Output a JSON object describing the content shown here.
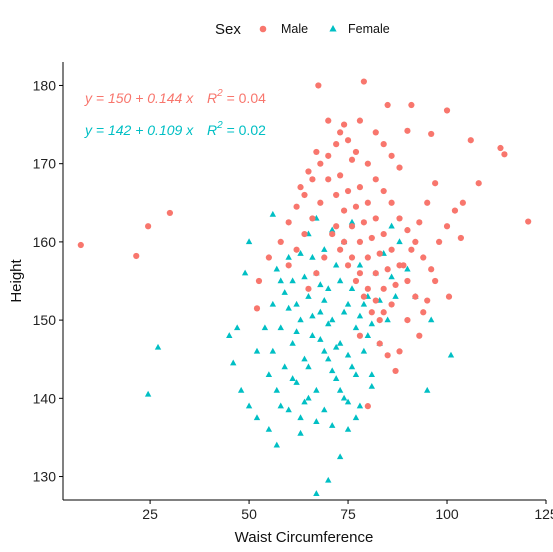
{
  "chart_data": {
    "type": "scatter",
    "xlabel": "Waist Circumference",
    "ylabel": "Height",
    "xlim": [
      3,
      125
    ],
    "ylim": [
      127,
      183
    ],
    "x_ticks": [
      "25",
      "50",
      "75",
      "100",
      "125"
    ],
    "y_ticks": [
      "130",
      "140",
      "150",
      "160",
      "170",
      "180"
    ],
    "grid": false,
    "legend": {
      "title": "Sex",
      "position": "top",
      "entries": [
        {
          "label": "Male",
          "marker": "circle",
          "color": "#F8766D"
        },
        {
          "label": "Female",
          "marker": "triangle",
          "color": "#00BFC4"
        }
      ]
    },
    "annotations": [
      {
        "series": "Male",
        "equation": "y = 150 + 0.144 x",
        "r2_symbol": "R",
        "r2_sup": "2",
        "r2_value": " = 0.04",
        "color": "#F8766D"
      },
      {
        "series": "Female",
        "equation": "y = 142 + 0.109 x",
        "r2_symbol": "R",
        "r2_sup": "2",
        "r2_value": " = 0.02",
        "color": "#00BFC4"
      }
    ],
    "series": [
      {
        "name": "Male",
        "marker": "circle",
        "color": "#F8766D",
        "points": [
          [
            7.5,
            159.6
          ],
          [
            21.5,
            158.2
          ],
          [
            24.5,
            162
          ],
          [
            30,
            163.7
          ],
          [
            113.5,
            172
          ],
          [
            114.5,
            171.2
          ],
          [
            120.5,
            162.6
          ],
          [
            67.5,
            180
          ],
          [
            79,
            180.5
          ],
          [
            91,
            177.5
          ],
          [
            100,
            176.8
          ],
          [
            85,
            177.5
          ],
          [
            74,
            175
          ],
          [
            78,
            175.5
          ],
          [
            90,
            174.2
          ],
          [
            96,
            173.8
          ],
          [
            106,
            173
          ],
          [
            108,
            167.5
          ],
          [
            104,
            165
          ],
          [
            103.5,
            160.5
          ],
          [
            100.5,
            153
          ],
          [
            97,
            155
          ],
          [
            95,
            152.5
          ],
          [
            90,
            150
          ],
          [
            88,
            146
          ],
          [
            93,
            148
          ],
          [
            80,
            139
          ],
          [
            87,
            143.5
          ],
          [
            85,
            145.5
          ],
          [
            83,
            147
          ],
          [
            78,
            148
          ],
          [
            52,
            151.5
          ],
          [
            52.5,
            155
          ],
          [
            55,
            158
          ],
          [
            58,
            160
          ],
          [
            60,
            162.5
          ],
          [
            62,
            164.5
          ],
          [
            63,
            167
          ],
          [
            65,
            169
          ],
          [
            67,
            171.5
          ],
          [
            70,
            171
          ],
          [
            72,
            172.5
          ],
          [
            73,
            174
          ],
          [
            75,
            173
          ],
          [
            77,
            171.5
          ],
          [
            80,
            170
          ],
          [
            82,
            168
          ],
          [
            84,
            166.5
          ],
          [
            86,
            165
          ],
          [
            88,
            163
          ],
          [
            90,
            161.5
          ],
          [
            92,
            160
          ],
          [
            94,
            158
          ],
          [
            96,
            156.5
          ],
          [
            98,
            160
          ],
          [
            100,
            162
          ],
          [
            102,
            164
          ],
          [
            70,
            168
          ],
          [
            72,
            166
          ],
          [
            74,
            164
          ],
          [
            76,
            162
          ],
          [
            78,
            160
          ],
          [
            80,
            158
          ],
          [
            82,
            156
          ],
          [
            84,
            154
          ],
          [
            86,
            152
          ],
          [
            68,
            165
          ],
          [
            66,
            163
          ],
          [
            64,
            161
          ],
          [
            62,
            159
          ],
          [
            60,
            157
          ],
          [
            75,
            166.5
          ],
          [
            77,
            164.5
          ],
          [
            79,
            162.5
          ],
          [
            81,
            160.5
          ],
          [
            83,
            158.5
          ],
          [
            85,
            156.5
          ],
          [
            87,
            154.5
          ],
          [
            89,
            157
          ],
          [
            91,
            159
          ],
          [
            93,
            162.5
          ],
          [
            95,
            165
          ],
          [
            97,
            167.5
          ],
          [
            88,
            169.5
          ],
          [
            86,
            171
          ],
          [
            84,
            172.5
          ],
          [
            82,
            174
          ],
          [
            70,
            175.5
          ],
          [
            68,
            170
          ],
          [
            66,
            168
          ],
          [
            64,
            166
          ],
          [
            71,
            161
          ],
          [
            73,
            159
          ],
          [
            75,
            157
          ],
          [
            77,
            155
          ],
          [
            79,
            153
          ],
          [
            81,
            151
          ],
          [
            83,
            150
          ],
          [
            69,
            158
          ],
          [
            67,
            156
          ],
          [
            65,
            154
          ],
          [
            73,
            168.5
          ],
          [
            76,
            170.5
          ],
          [
            78,
            167
          ],
          [
            80,
            165
          ],
          [
            82,
            163
          ],
          [
            84,
            161
          ],
          [
            86,
            159
          ],
          [
            88,
            157
          ],
          [
            90,
            155
          ],
          [
            92,
            153
          ],
          [
            94,
            151
          ],
          [
            72,
            162
          ],
          [
            74,
            160
          ],
          [
            76,
            158
          ],
          [
            78,
            156
          ],
          [
            80,
            154
          ],
          [
            82,
            152.5
          ],
          [
            84,
            151
          ]
        ]
      },
      {
        "name": "Female",
        "marker": "triangle",
        "color": "#00BFC4",
        "points": [
          [
            24.5,
            140.5
          ],
          [
            27,
            146.5
          ],
          [
            67,
            127.8
          ],
          [
            70,
            129.5
          ],
          [
            57,
            134
          ],
          [
            63,
            135.5
          ],
          [
            73,
            132.5
          ],
          [
            75,
            136
          ],
          [
            78,
            139
          ],
          [
            81,
            141.5
          ],
          [
            95,
            141
          ],
          [
            101,
            145.5
          ],
          [
            96,
            150
          ],
          [
            92,
            153
          ],
          [
            90,
            156.5
          ],
          [
            88,
            160
          ],
          [
            86,
            162
          ],
          [
            56,
            163.5
          ],
          [
            50,
            160
          ],
          [
            49,
            156
          ],
          [
            47,
            149
          ],
          [
            45,
            148
          ],
          [
            46,
            144.5
          ],
          [
            48,
            141
          ],
          [
            50,
            139
          ],
          [
            52,
            137.5
          ],
          [
            55,
            136
          ],
          [
            60,
            138.5
          ],
          [
            62,
            142
          ],
          [
            64,
            145
          ],
          [
            66,
            148
          ],
          [
            68,
            151
          ],
          [
            70,
            154
          ],
          [
            72,
            157
          ],
          [
            74,
            160
          ],
          [
            76,
            162.5
          ],
          [
            60,
            158
          ],
          [
            58,
            155
          ],
          [
            56,
            152
          ],
          [
            54,
            149
          ],
          [
            52,
            146
          ],
          [
            55,
            143
          ],
          [
            57,
            141
          ],
          [
            59,
            144
          ],
          [
            61,
            147
          ],
          [
            63,
            150
          ],
          [
            65,
            153
          ],
          [
            67,
            156
          ],
          [
            69,
            159
          ],
          [
            71,
            161.5
          ],
          [
            73,
            155
          ],
          [
            75,
            152
          ],
          [
            77,
            149
          ],
          [
            79,
            146
          ],
          [
            81,
            143
          ],
          [
            83,
            147
          ],
          [
            85,
            150
          ],
          [
            87,
            153
          ],
          [
            65,
            144
          ],
          [
            67,
            141
          ],
          [
            69,
            138.5
          ],
          [
            71,
            136.5
          ],
          [
            62,
            152
          ],
          [
            64,
            155.5
          ],
          [
            66,
            158
          ],
          [
            68,
            147.5
          ],
          [
            70,
            145
          ],
          [
            72,
            142.5
          ],
          [
            74,
            140
          ],
          [
            76,
            144
          ],
          [
            78,
            150.5
          ],
          [
            80,
            153
          ],
          [
            82,
            156
          ],
          [
            84,
            158.5
          ],
          [
            86,
            155.5
          ],
          [
            58,
            149
          ],
          [
            56,
            146
          ],
          [
            60,
            151.5
          ],
          [
            62,
            148.5
          ],
          [
            64,
            139.5
          ],
          [
            66,
            150.5
          ],
          [
            68,
            154.5
          ],
          [
            70,
            149.5
          ],
          [
            72,
            146.5
          ],
          [
            74,
            151
          ],
          [
            76,
            154
          ],
          [
            78,
            157
          ],
          [
            80,
            148
          ],
          [
            61,
            142.5
          ],
          [
            63,
            137.5
          ],
          [
            65,
            140
          ],
          [
            67,
            137
          ],
          [
            69,
            152.5
          ],
          [
            71,
            150
          ],
          [
            73,
            147
          ],
          [
            75,
            145.5
          ],
          [
            77,
            143
          ],
          [
            79,
            152
          ],
          [
            81,
            149.5
          ],
          [
            83,
            152.5
          ],
          [
            58,
            139
          ],
          [
            57,
            156.5
          ],
          [
            59,
            153.5
          ],
          [
            61,
            155
          ],
          [
            63,
            158.5
          ],
          [
            65,
            161
          ],
          [
            67,
            163
          ],
          [
            69,
            146
          ],
          [
            71,
            143.5
          ],
          [
            73,
            141
          ],
          [
            75,
            139.5
          ],
          [
            77,
            137.5
          ]
        ]
      }
    ]
  }
}
